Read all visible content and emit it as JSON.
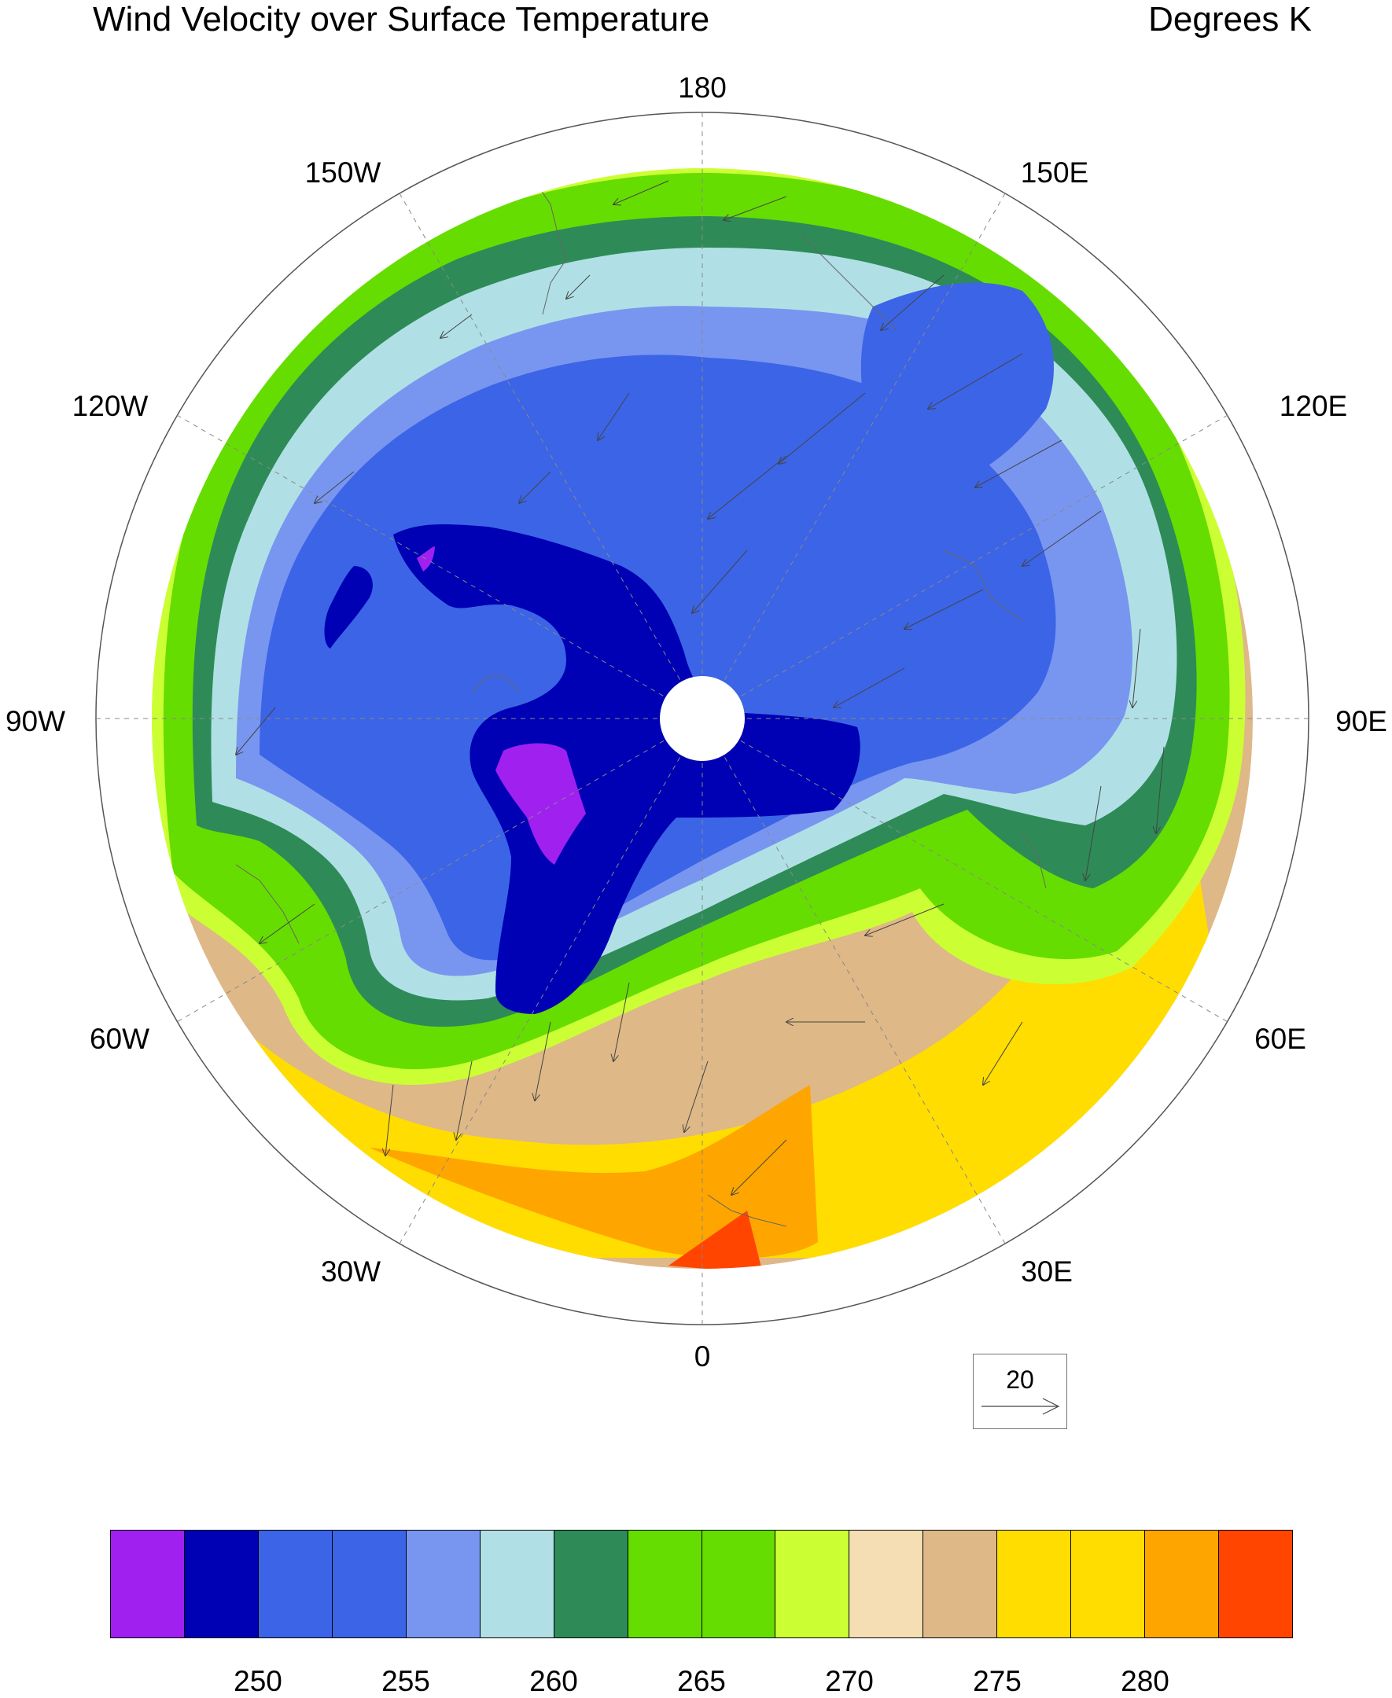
{
  "title": "Wind Velocity over Surface Temperature",
  "units": "Degrees K",
  "longitude_labels": [
    "180",
    "150E",
    "120E",
    "90E",
    "60E",
    "30E",
    "0",
    "30W",
    "60W",
    "90W",
    "120W",
    "150W"
  ],
  "reference_vector": {
    "label": "20"
  },
  "colorbar": {
    "colors": [
      "#a020f0",
      "#0000b4",
      "#3c64e6",
      "#3c64e6",
      "#7896f0",
      "#b0e0e6",
      "#2e8b57",
      "#66dd00",
      "#66dd00",
      "#ccff33",
      "#f5deb3",
      "#deb887",
      "#ffdd00",
      "#ffdd00",
      "#ffa500",
      "#ff4500"
    ],
    "tick_labels": [
      "250",
      "255",
      "260",
      "265",
      "270",
      "275",
      "280"
    ]
  },
  "map_data": {
    "projection": "polar stereographic (north pole centered)",
    "field": "surface temperature (Degrees K) with wind velocity vectors",
    "colors": {
      "coldest": "#a020f0",
      "very_cold": "#0000b4",
      "cold": "#3c64e6",
      "cool": "#7896f0",
      "mild_cool": "#b0e0e6",
      "teal": "#2e8b57",
      "green": "#66dd00",
      "lime": "#ccff33",
      "wheat": "#f5deb3",
      "tan": "#deb887",
      "yellow": "#ffdd00",
      "orange": "#ffa500",
      "red": "#ff4500"
    }
  }
}
